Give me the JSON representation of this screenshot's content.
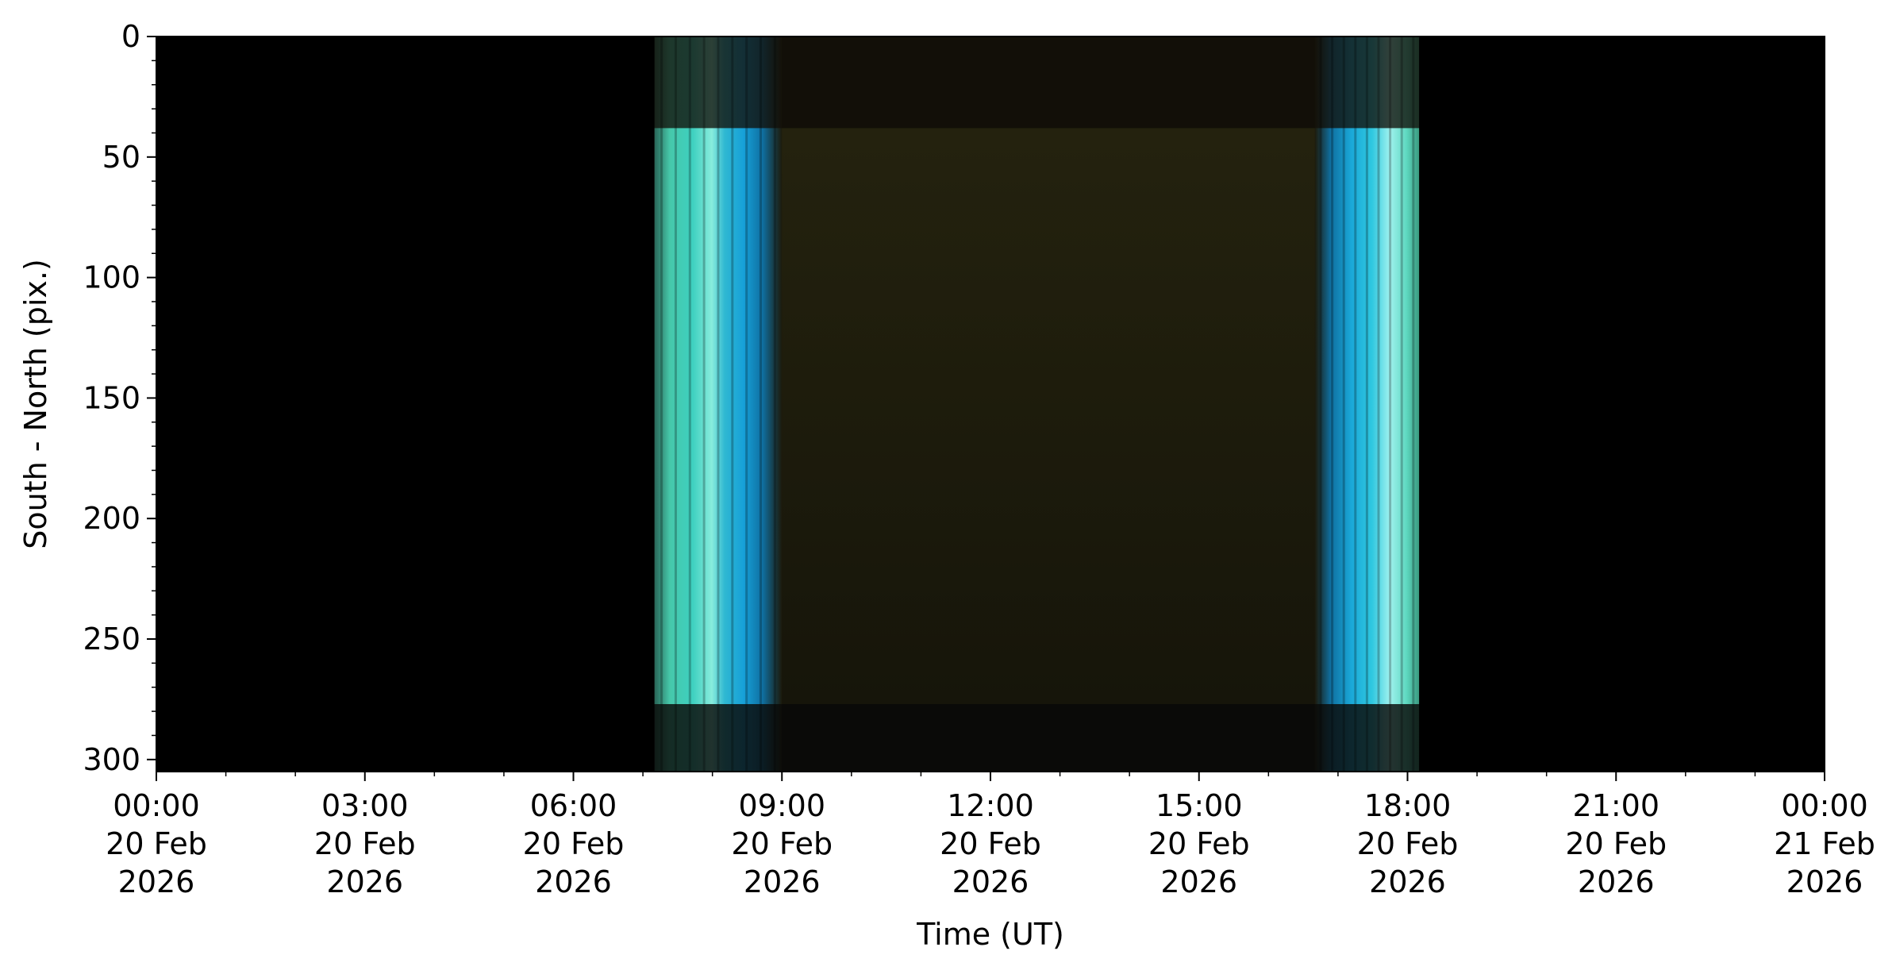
{
  "chart_data": {
    "type": "heatmap",
    "title": "",
    "xlabel": "Time (UT)",
    "ylabel": "South - North (pix.)",
    "xlim": [
      "2026-02-20T00:00",
      "2026-02-21T00:00"
    ],
    "ylim": [
      305,
      0
    ],
    "x_ticks": [
      {
        "time": "2026-02-20T00:00",
        "lines": [
          "00:00",
          "20 Feb",
          "2026"
        ]
      },
      {
        "time": "2026-02-20T03:00",
        "lines": [
          "03:00",
          "20 Feb",
          "2026"
        ]
      },
      {
        "time": "2026-02-20T06:00",
        "lines": [
          "06:00",
          "20 Feb",
          "2026"
        ]
      },
      {
        "time": "2026-02-20T09:00",
        "lines": [
          "09:00",
          "20 Feb",
          "2026"
        ]
      },
      {
        "time": "2026-02-20T12:00",
        "lines": [
          "12:00",
          "20 Feb",
          "2026"
        ]
      },
      {
        "time": "2026-02-20T15:00",
        "lines": [
          "15:00",
          "20 Feb",
          "2026"
        ]
      },
      {
        "time": "2026-02-20T18:00",
        "lines": [
          "18:00",
          "20 Feb",
          "2026"
        ]
      },
      {
        "time": "2026-02-20T21:00",
        "lines": [
          "21:00",
          "20 Feb",
          "2026"
        ]
      },
      {
        "time": "2026-02-21T00:00",
        "lines": [
          "00:00",
          "21 Feb",
          "2026"
        ]
      }
    ],
    "y_ticks": [
      0,
      50,
      100,
      150,
      200,
      250,
      300
    ],
    "background_color": "#000000",
    "data_window": {
      "start": "2026-02-20T07:10",
      "end": "2026-02-20T18:10",
      "y_top": 38,
      "y_bottom": 277
    },
    "bright_bands": [
      {
        "start": "2026-02-20T07:10",
        "end": "2026-02-20T09:00",
        "color": "#4fe0c8"
      },
      {
        "start": "2026-02-20T16:40",
        "end": "2026-02-20T18:10",
        "color": "#4fe0e0"
      }
    ],
    "colors": {
      "cyan": "#3fd6c8",
      "blue": "#1aa8d8",
      "dark_olive": "#1c1a0c"
    }
  }
}
